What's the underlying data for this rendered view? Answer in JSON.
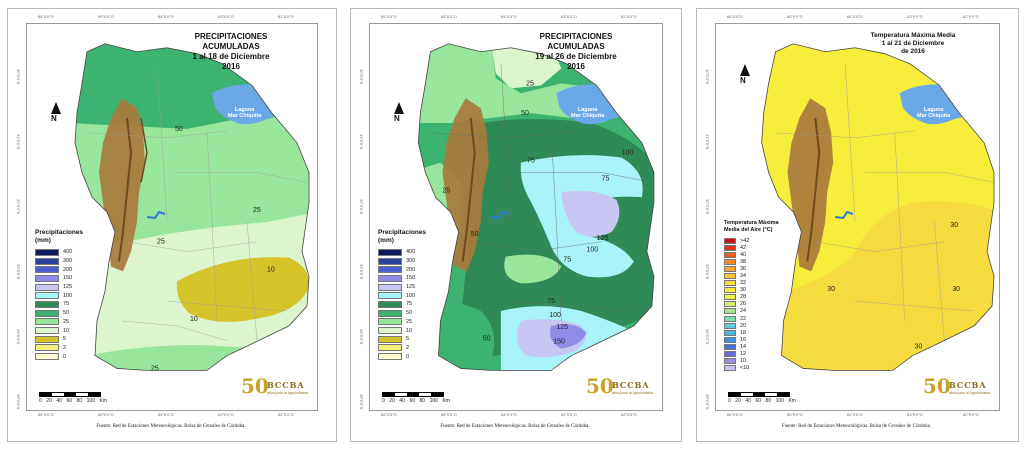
{
  "common": {
    "lon_ticks": [
      "66°0'0\"O",
      "65°0'0\"O",
      "64°0'0\"O",
      "63°0'0\"O",
      "62°0'0\"O"
    ],
    "lat_ticks": [
      "30°0'0\"S",
      "31°0'0\"S",
      "32°0'0\"S",
      "33°0'0\"S",
      "34°0'0\"S",
      "35°0'0\"S"
    ],
    "north": "N",
    "lake_label": "Laguna\nMar Chiquita",
    "scale_unit": "Km",
    "scale_numbers": [
      "0",
      "20",
      "40",
      "60",
      "80",
      "100"
    ],
    "logo_number": "50",
    "logo_text": "BCCBA",
    "logo_tagline": "años junto al Agroindustria",
    "source": "Fuente: Red de Estaciones Meteorológicas. Bolsa de Cereales de Córdoba."
  },
  "precip_legend": {
    "title": "Precipitaciones\n(mm)",
    "items": [
      {
        "label": "400",
        "color": "#0d1b5e"
      },
      {
        "label": "300",
        "color": "#2a3f9c"
      },
      {
        "label": "200",
        "color": "#4d5fd0"
      },
      {
        "label": "150",
        "color": "#8f8ce8"
      },
      {
        "label": "125",
        "color": "#c8c6f2"
      },
      {
        "label": "100",
        "color": "#a8f4f8"
      },
      {
        "label": "75",
        "color": "#2e8b57"
      },
      {
        "label": "50",
        "color": "#3cb371"
      },
      {
        "label": "25",
        "color": "#98e59c"
      },
      {
        "label": "10",
        "color": "#dcf5cf"
      },
      {
        "label": "5",
        "color": "#d4c42a"
      },
      {
        "label": "2",
        "color": "#f5f07a"
      },
      {
        "label": "0",
        "color": "#fffbd0"
      }
    ]
  },
  "maps": [
    {
      "title": "PRECIPITACIONES\nACUMULADAS\n1 al 18 de Diciembre\n2016",
      "contours": [
        "50",
        "25",
        "25",
        "10",
        "10",
        "25"
      ]
    },
    {
      "title": "PRECIPITACIONES\nACUMULADAS\n19 al 26 de Diciembre\n2016",
      "contours": [
        "25",
        "50",
        "75",
        "100",
        "75",
        "125",
        "100",
        "75",
        "50",
        "25",
        "75",
        "100",
        "125",
        "150",
        "50"
      ]
    },
    {
      "title": "Temperatura Máxima Media\n1 al 21 de Diciembre\nde 2016",
      "contours": [
        "30",
        "30",
        "30",
        "30"
      ],
      "legend": {
        "title": "Temperatura Máxima\nMedia del Aire (°C)",
        "items": [
          {
            "label": ">42",
            "color": "#c81414"
          },
          {
            "label": "42",
            "color": "#e0301a"
          },
          {
            "label": "40",
            "color": "#ef5a1f"
          },
          {
            "label": "38",
            "color": "#f68a28"
          },
          {
            "label": "36",
            "color": "#f9a830"
          },
          {
            "label": "34",
            "color": "#f8c93a"
          },
          {
            "label": "32",
            "color": "#f7dc40"
          },
          {
            "label": "30",
            "color": "#f7ee3c"
          },
          {
            "label": "28",
            "color": "#eef246"
          },
          {
            "label": "26",
            "color": "#d5ef6a"
          },
          {
            "label": "24",
            "color": "#a8e58c"
          },
          {
            "label": "22",
            "color": "#7fdcb0"
          },
          {
            "label": "20",
            "color": "#62cfd8"
          },
          {
            "label": "18",
            "color": "#4ab6e6"
          },
          {
            "label": "16",
            "color": "#3d92e3"
          },
          {
            "label": "14",
            "color": "#4a6ed8"
          },
          {
            "label": "12",
            "color": "#6a6ad6"
          },
          {
            "label": "10",
            "color": "#9a90e0"
          },
          {
            "label": "<10",
            "color": "#c8c4ee"
          }
        ]
      }
    }
  ]
}
